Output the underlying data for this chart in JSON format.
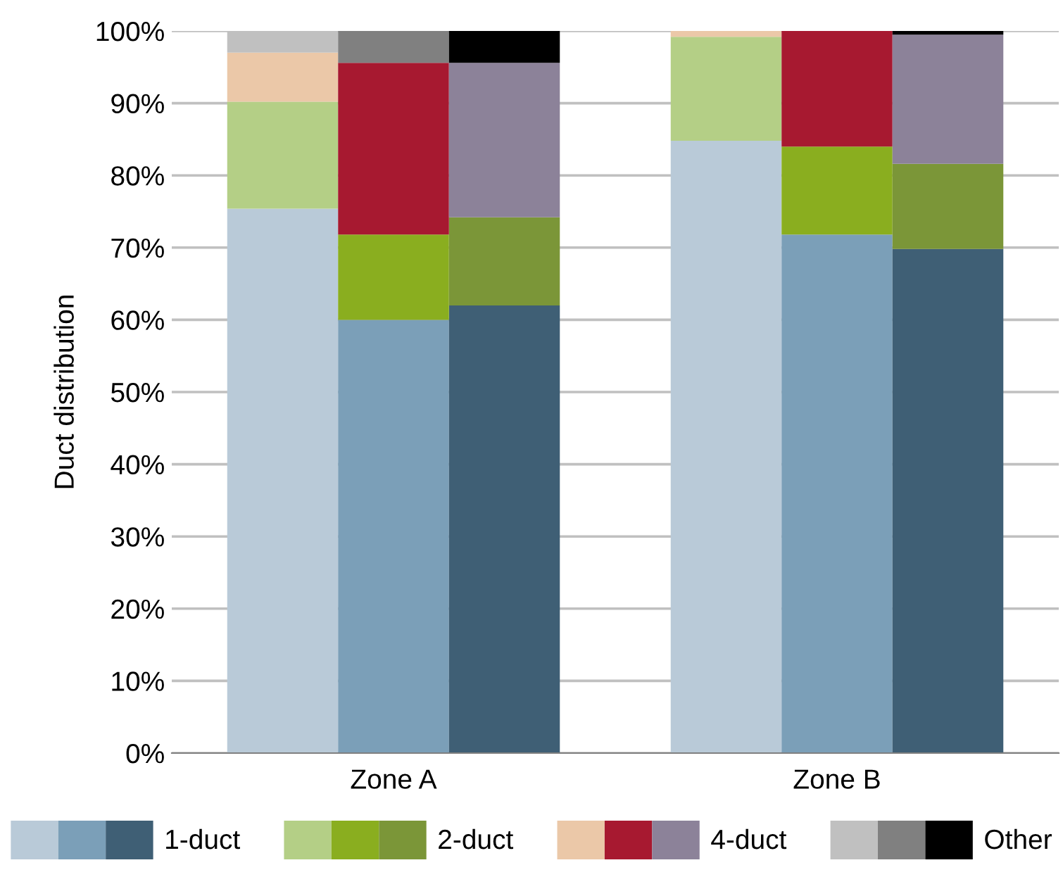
{
  "chart_data": {
    "type": "bar",
    "stacked": true,
    "ylabel": "Duct distribution",
    "categories": [
      null,
      "Zone A",
      null,
      null,
      null,
      "Zone B",
      null
    ],
    "series": [
      {
        "name": "1-duct",
        "colors": [
          "#b9cad8",
          "#7b9fb8",
          "#3f5f75",
          null,
          "#b9cad8",
          "#7b9fb8",
          "#3f5f75"
        ],
        "values": [
          75.4,
          60,
          62,
          null,
          84.8,
          71.8,
          69.8
        ]
      },
      {
        "name": "2-duct",
        "colors": [
          "#b4cf86",
          "#8aae1f",
          "#7b9638",
          null,
          "#b4cf86",
          "#8aae1f",
          "#7b9638"
        ],
        "values": [
          14.8,
          11.8,
          12.2,
          null,
          14.4,
          12.2,
          11.8
        ]
      },
      {
        "name": "4-duct",
        "colors": [
          "#ebc8a8",
          "#a71930",
          "#8c8299",
          null,
          "#ebc8a8",
          "#a71930",
          "#8c8299"
        ],
        "values": [
          6.8,
          23.8,
          21.4,
          null,
          0.8,
          16,
          17.9
        ]
      },
      {
        "name": "Other",
        "colors": [
          "#c0c0c0",
          "#808080",
          "#000000",
          null,
          "#c0c0c0",
          "#808080",
          "#000000"
        ],
        "values": [
          3.0,
          4.4,
          4.4,
          null,
          0,
          0,
          0.5
        ]
      }
    ],
    "ylim": [
      0,
      100
    ],
    "yticks": [
      {
        "value": 0,
        "label": "0%"
      },
      {
        "value": 10,
        "label": "10%"
      },
      {
        "value": 20,
        "label": "20%"
      },
      {
        "value": 30,
        "label": "30%"
      },
      {
        "value": 40,
        "label": "40%"
      },
      {
        "value": 50,
        "label": "50%"
      },
      {
        "value": 60,
        "label": "60%"
      },
      {
        "value": 70,
        "label": "70%"
      },
      {
        "value": 80,
        "label": "80%"
      },
      {
        "value": 90,
        "label": "90%"
      },
      {
        "value": 100,
        "label": "100%"
      }
    ],
    "grid": "y",
    "legend": "bottom"
  }
}
